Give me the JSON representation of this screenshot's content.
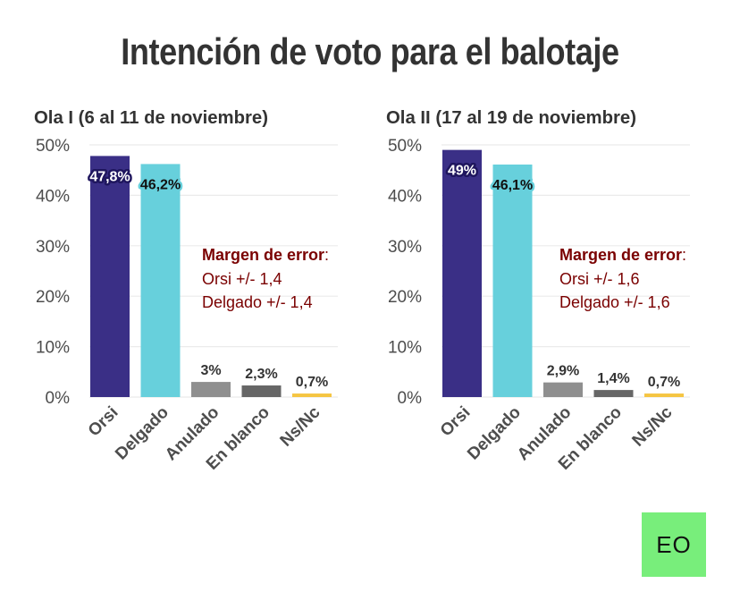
{
  "title": "Intención de voto para el balotaje",
  "logo": {
    "text": "EO",
    "bg": "#78ee7b"
  },
  "colors": {
    "Orsi": "#3a2f86",
    "Delgado": "#67d0dc",
    "Anulado": "#8f8f8f",
    "En blanco": "#666666",
    "Ns/Nc": "#f5c542",
    "margin_text": "#7a0000"
  },
  "chart_data": [
    {
      "type": "bar",
      "title": "Ola I (6 al 11 de noviembre)",
      "categories": [
        "Orsi",
        "Delgado",
        "Anulado",
        "En blanco",
        "Ns/Nc"
      ],
      "values": [
        47.8,
        46.2,
        3,
        2.3,
        0.7
      ],
      "labels": [
        "47,8%",
        "46,2%",
        "3%",
        "2,3%",
        "0,7%"
      ],
      "ylim": [
        0,
        50
      ],
      "yticks": [
        "0%",
        "10%",
        "20%",
        "30%",
        "40%",
        "50%"
      ],
      "grid": true,
      "annotation": {
        "heading": "Margen de error",
        "colon": ":",
        "lines": [
          "Orsi +/- 1,4",
          "Delgado +/- 1,4"
        ]
      }
    },
    {
      "type": "bar",
      "title": "Ola II (17 al 19 de noviembre)",
      "categories": [
        "Orsi",
        "Delgado",
        "Anulado",
        "En blanco",
        "Ns/Nc"
      ],
      "values": [
        49,
        46.1,
        2.9,
        1.4,
        0.7
      ],
      "labels": [
        "49%",
        "46,1%",
        "2,9%",
        "1,4%",
        "0,7%"
      ],
      "ylim": [
        0,
        50
      ],
      "yticks": [
        "0%",
        "10%",
        "20%",
        "30%",
        "40%",
        "50%"
      ],
      "grid": true,
      "annotation": {
        "heading": "Margen de error",
        "colon": ":",
        "lines": [
          "Orsi +/- 1,6",
          "Delgado +/- 1,6"
        ]
      }
    }
  ]
}
